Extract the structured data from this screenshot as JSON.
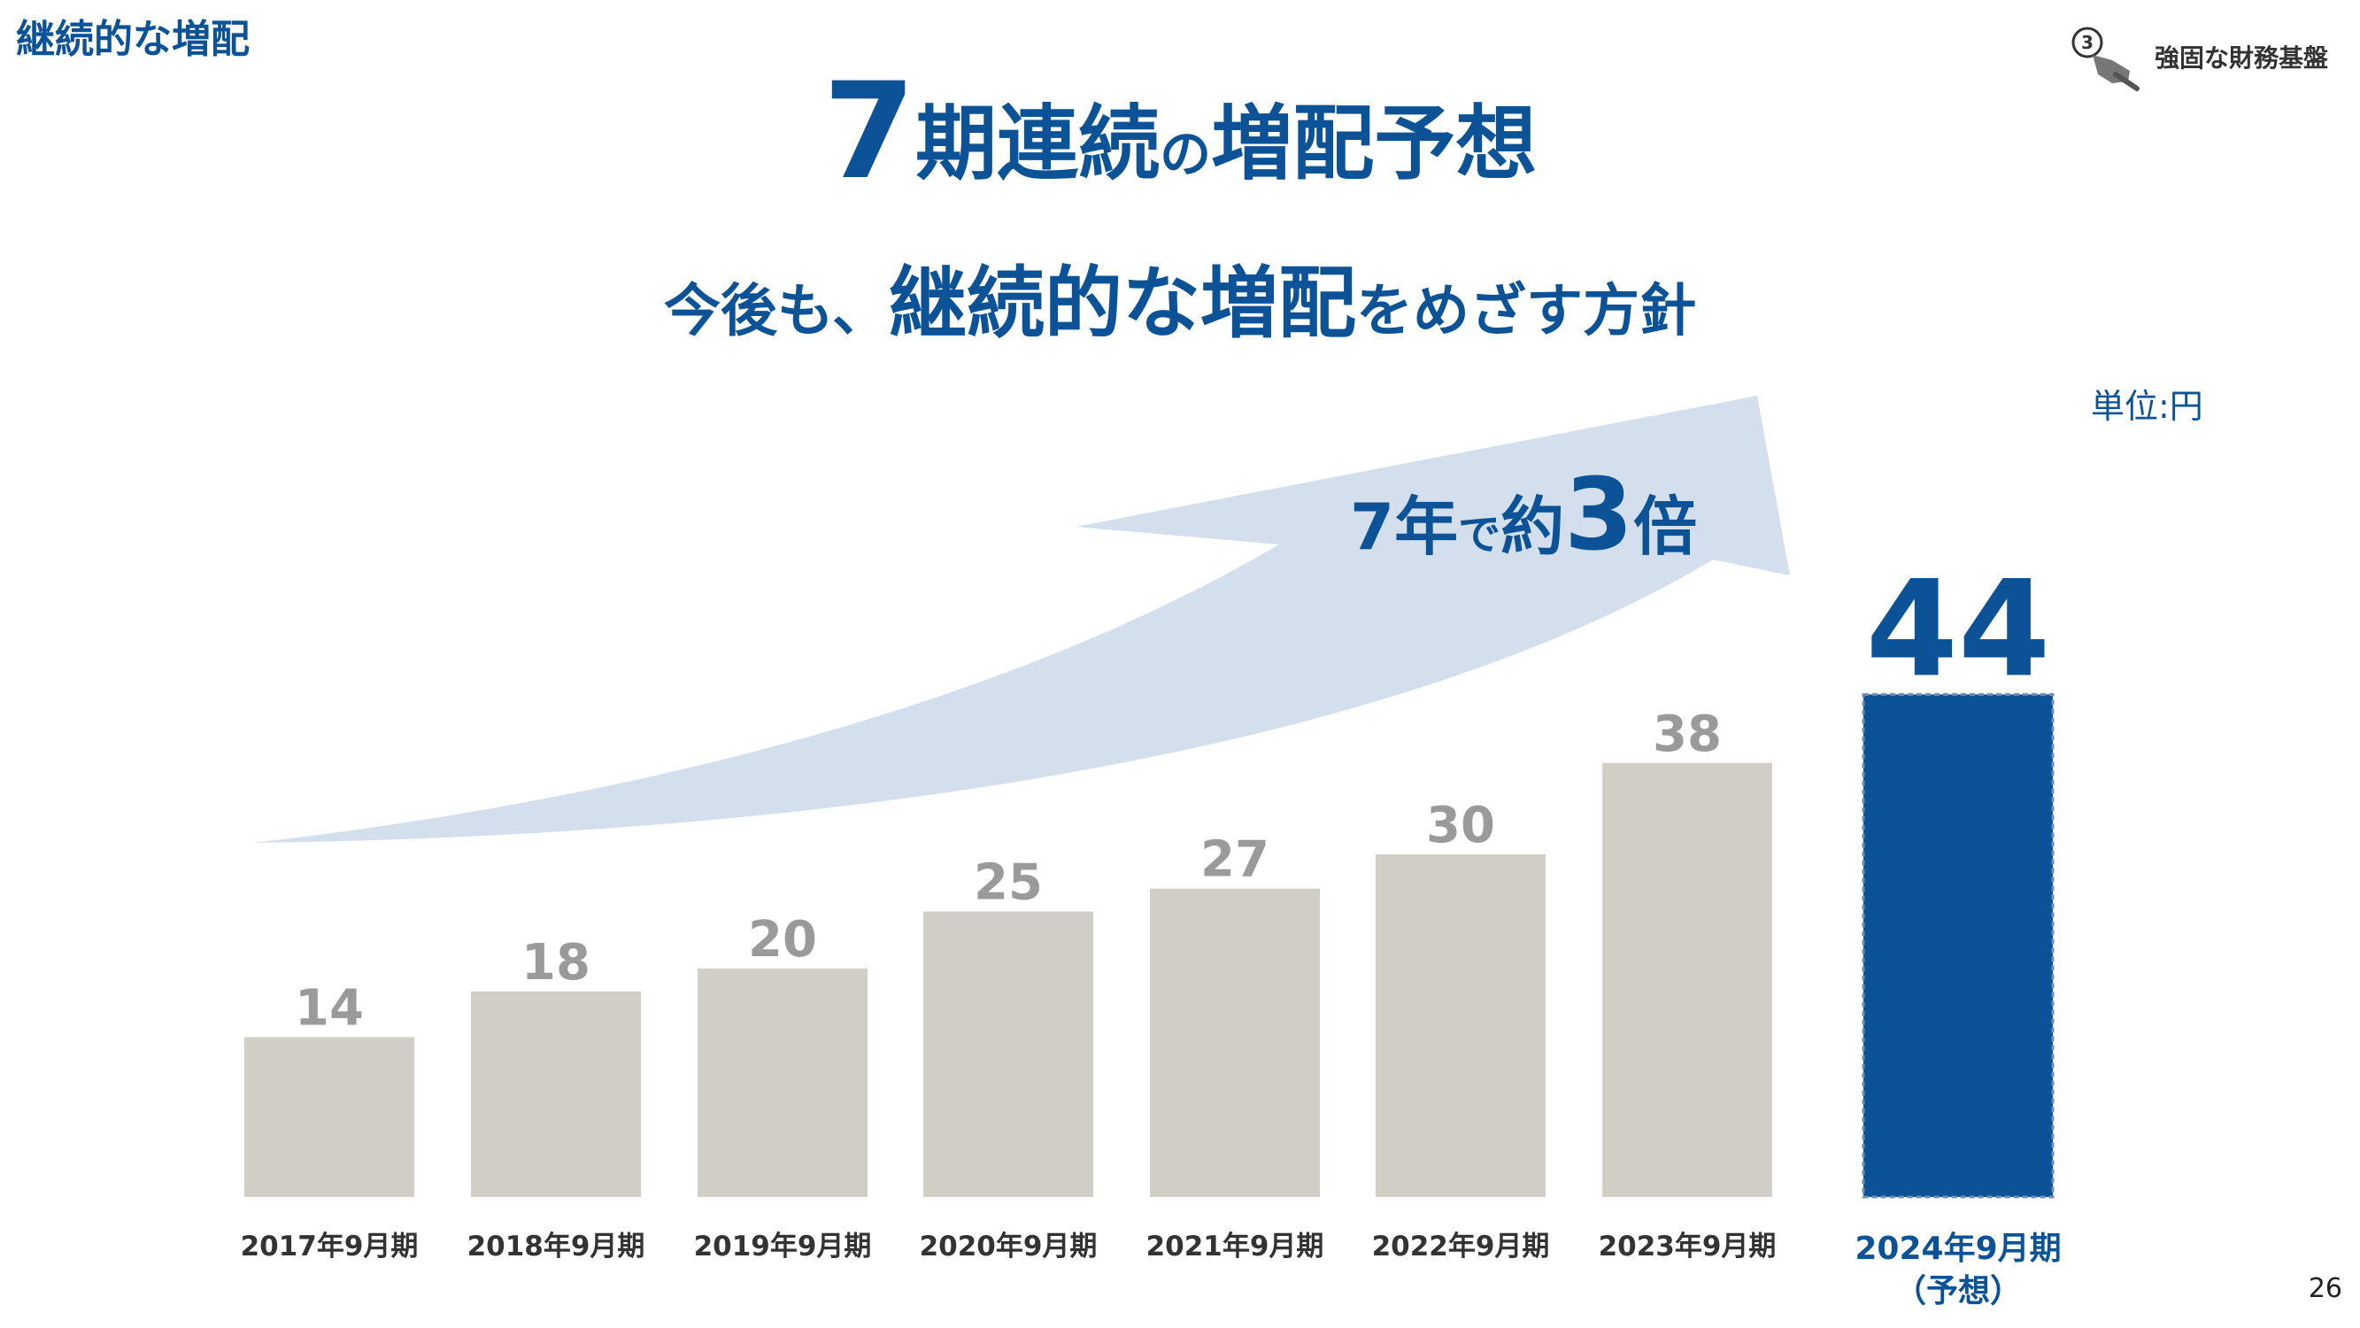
{
  "header": {
    "section_title": "継続的な増配",
    "badge_number": "3",
    "badge_label": "強固な財務基盤"
  },
  "headline": {
    "number": "7",
    "part1": "期連続",
    "particle": "の",
    "part2": "増配予想"
  },
  "subline": {
    "part1": "今後も、",
    "emphasis": "継続的な増配",
    "part2": "をめざす方針"
  },
  "unit_label": "単位:円",
  "page_number": "26",
  "arrow": {
    "part1": "7年",
    "particle": "で",
    "part2": "約",
    "emphasis": "3",
    "part3": "倍"
  },
  "colors": {
    "brand": "#0c5296",
    "bar_gray": "#d0cec5",
    "label_gray": "#9a9a9a",
    "arrow_fill": "#d3dfec"
  },
  "chart_data": {
    "type": "bar",
    "categories": [
      "2017年9月期",
      "2018年9月期",
      "2019年9月期",
      "2020年9月期",
      "2021年9月期",
      "2022年9月期",
      "2023年9月期",
      "2024年9月期"
    ],
    "category_sublabels": [
      "",
      "",
      "",
      "",
      "",
      "",
      "",
      "（予想）"
    ],
    "values": [
      14,
      18,
      20,
      25,
      27,
      30,
      38,
      44
    ],
    "highlight_last": true,
    "ylabel": "",
    "unit": "円",
    "ylim": [
      0,
      44
    ]
  }
}
